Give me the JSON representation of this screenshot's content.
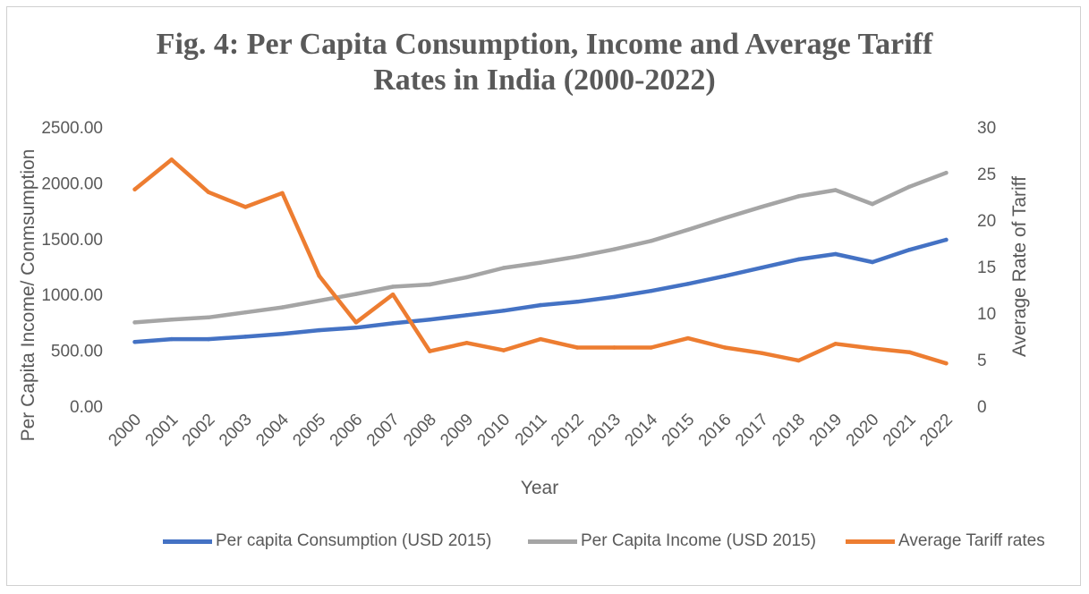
{
  "chart_data": {
    "type": "line",
    "title_line1": "Fig. 4: Per Capita Consumption, Income and Average Tariff",
    "title_line2": "Rates in India (2000-2022)",
    "xlabel": "Year",
    "ylabel_left": "Per Capita Income/ Conmsumption",
    "ylabel_right": "Average Rate of Tariff",
    "categories": [
      "2000",
      "2001",
      "2002",
      "2003",
      "2004",
      "2005",
      "2006",
      "2007",
      "2008",
      "2009",
      "2010",
      "2011",
      "2012",
      "2013",
      "2014",
      "2015",
      "2016",
      "2017",
      "2018",
      "2019",
      "2020",
      "2021",
      "2022"
    ],
    "y_left": {
      "min": 0,
      "max": 2500,
      "ticks": [
        "0.00",
        "500.00",
        "1000.00",
        "1500.00",
        "2000.00",
        "2500.00"
      ],
      "tick_values": [
        0,
        500,
        1000,
        1500,
        2000,
        2500
      ]
    },
    "y_right": {
      "min": 0,
      "max": 30,
      "ticks": [
        "0",
        "5",
        "10",
        "15",
        "20",
        "25",
        "30"
      ],
      "tick_values": [
        0,
        5,
        10,
        15,
        20,
        25,
        30
      ]
    },
    "series": [
      {
        "name": "Per capita Consumption (USD 2015)",
        "axis": "left",
        "color": "#4472c4",
        "values": [
          575,
          600,
          600,
          622,
          647,
          680,
          703,
          742,
          775,
          815,
          855,
          905,
          935,
          978,
          1032,
          1095,
          1165,
          1240,
          1315,
          1362,
          1290,
          1400,
          1490
        ]
      },
      {
        "name": "Per Capita Income (USD 2015)",
        "axis": "left",
        "color": "#a5a5a5",
        "values": [
          750,
          775,
          795,
          840,
          885,
          945,
          1005,
          1070,
          1090,
          1155,
          1238,
          1285,
          1340,
          1405,
          1480,
          1580,
          1685,
          1785,
          1880,
          1935,
          1810,
          1965,
          2090
        ]
      },
      {
        "name": "Average Tariff rates",
        "axis": "right",
        "color": "#ed7d31",
        "values": [
          23.3,
          26.5,
          23,
          21.4,
          22.9,
          14,
          9,
          12,
          5.9,
          6.8,
          6,
          7.2,
          6.3,
          6.3,
          6.3,
          7.3,
          6.3,
          5.7,
          4.9,
          6.7,
          6.2,
          5.8,
          4.6
        ]
      }
    ],
    "legend": {
      "placement": "bottom"
    },
    "grid": false
  }
}
